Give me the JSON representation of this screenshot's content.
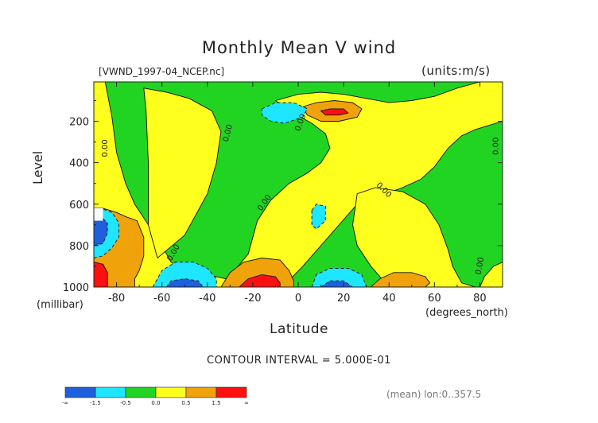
{
  "chart_data": {
    "type": "heatmap",
    "subtype": "filled-contour",
    "title": "Monthly Mean V wind",
    "file_label": "[VWND_1997-04_NCEP.nc]",
    "units_label": "(units:m/s)",
    "xlabel": "Latitude",
    "x_unit_label": "(degrees_north)",
    "ylabel": "Level",
    "y_unit_label": "(millibar)",
    "x_ticks": [
      "-80",
      "-60",
      "-40",
      "-20",
      "0",
      "20",
      "40",
      "60",
      "80"
    ],
    "x_tick_values": [
      -80,
      -60,
      -40,
      -20,
      0,
      20,
      40,
      60,
      80
    ],
    "y_ticks": [
      "200",
      "400",
      "600",
      "800",
      "1000"
    ],
    "y_tick_values": [
      200,
      400,
      600,
      800,
      1000
    ],
    "xlim": [
      -90,
      90
    ],
    "ylim": [
      1000,
      10
    ],
    "y_reversed": true,
    "contour_interval_text": "CONTOUR INTERVAL = 5.000E-01",
    "contour_label": "0.00",
    "mean_text": "(mean) lon:0..357.5",
    "colorbar": {
      "labels": [
        "-∞",
        "-1.5",
        "-0.5",
        "0.0",
        "0.5",
        "1.5",
        "∞"
      ],
      "colors": [
        "#1e5fdc",
        "#1ee6ff",
        "#22d422",
        "#ffff1e",
        "#f0a20a",
        "#ff1010"
      ]
    },
    "regions": [
      {
        "name": "positive-band-west",
        "class": 1,
        "polygon": [
          [
            -85,
            10
          ],
          [
            -82,
            180
          ],
          [
            -80,
            350
          ],
          [
            -76,
            500
          ],
          [
            -72,
            600
          ],
          [
            -66,
            700
          ],
          [
            -60,
            800
          ],
          [
            -56,
            880
          ],
          [
            -50,
            920
          ],
          [
            -40,
            940
          ],
          [
            -32,
            960
          ],
          [
            -26,
            1000
          ],
          [
            -60,
            1000
          ],
          [
            -75,
            1000
          ],
          [
            -88,
            1000
          ],
          [
            -90,
            1000
          ],
          [
            -90,
            10
          ]
        ]
      },
      {
        "name": "positive-band-upper",
        "class": 1,
        "polygon": [
          [
            -68,
            40
          ],
          [
            -58,
            60
          ],
          [
            -48,
            90
          ],
          [
            -38,
            150
          ],
          [
            -34,
            250
          ],
          [
            -36,
            400
          ],
          [
            -40,
            550
          ],
          [
            -50,
            750
          ],
          [
            -62,
            860
          ],
          [
            -66,
            700
          ],
          [
            -66,
            400
          ],
          [
            -67,
            150
          ]
        ]
      },
      {
        "name": "positive-band-middle",
        "class": 1,
        "polygon": [
          [
            -10,
            100
          ],
          [
            -2,
            160
          ],
          [
            6,
            210
          ],
          [
            12,
            260
          ],
          [
            14,
            330
          ],
          [
            10,
            400
          ],
          [
            4,
            450
          ],
          [
            -4,
            500
          ],
          [
            -12,
            580
          ],
          [
            -18,
            680
          ],
          [
            -22,
            840
          ],
          [
            -28,
            920
          ],
          [
            -30,
            980
          ],
          [
            -18,
            990
          ],
          [
            -6,
            990
          ],
          [
            2,
            900
          ],
          [
            10,
            800
          ],
          [
            18,
            700
          ],
          [
            26,
            600
          ],
          [
            36,
            560
          ],
          [
            46,
            520
          ],
          [
            54,
            480
          ],
          [
            60,
            420
          ],
          [
            66,
            330
          ],
          [
            72,
            270
          ],
          [
            78,
            240
          ],
          [
            84,
            220
          ],
          [
            90,
            200
          ],
          [
            90,
            10
          ],
          [
            80,
            10
          ],
          [
            70,
            40
          ],
          [
            60,
            80
          ],
          [
            50,
            100
          ],
          [
            40,
            110
          ],
          [
            30,
            90
          ],
          [
            20,
            70
          ],
          [
            10,
            60
          ],
          [
            0,
            70
          ]
        ]
      },
      {
        "name": "positive-band-east",
        "class": 1,
        "polygon": [
          [
            26,
            550
          ],
          [
            34,
            520
          ],
          [
            46,
            540
          ],
          [
            56,
            600
          ],
          [
            62,
            700
          ],
          [
            66,
            820
          ],
          [
            68,
            900
          ],
          [
            72,
            980
          ],
          [
            78,
            1000
          ],
          [
            40,
            1000
          ],
          [
            32,
            900
          ],
          [
            26,
            800
          ],
          [
            24,
            700
          ]
        ]
      },
      {
        "name": "positive-corner-east",
        "class": 1,
        "polygon": [
          [
            82,
            950
          ],
          [
            86,
            900
          ],
          [
            90,
            880
          ],
          [
            90,
            1000
          ],
          [
            80,
            1000
          ]
        ]
      },
      {
        "name": "moderate-positive-west",
        "class": 2,
        "polygon": [
          [
            -90,
            620
          ],
          [
            -86,
            620
          ],
          [
            -80,
            640
          ],
          [
            -76,
            660
          ],
          [
            -71,
            680
          ],
          [
            -68,
            760
          ],
          [
            -68,
            850
          ],
          [
            -70,
            920
          ],
          [
            -72,
            960
          ],
          [
            -72,
            1000
          ],
          [
            -90,
            1000
          ]
        ]
      },
      {
        "name": "strong-positive-west",
        "class": 3,
        "polygon": [
          [
            -90,
            880
          ],
          [
            -86,
            890
          ],
          [
            -84,
            930
          ],
          [
            -84,
            960
          ],
          [
            -84,
            1000
          ],
          [
            -90,
            1000
          ]
        ]
      },
      {
        "name": "moderate-positive-lower-middle",
        "class": 2,
        "polygon": [
          [
            -34,
            1000
          ],
          [
            -30,
            930
          ],
          [
            -24,
            880
          ],
          [
            -16,
            860
          ],
          [
            -8,
            870
          ],
          [
            -4,
            920
          ],
          [
            -2,
            970
          ],
          [
            -2,
            1000
          ]
        ]
      },
      {
        "name": "strong-positive-lower-middle",
        "class": 3,
        "polygon": [
          [
            -26,
            1000
          ],
          [
            -22,
            960
          ],
          [
            -16,
            940
          ],
          [
            -10,
            950
          ],
          [
            -8,
            980
          ],
          [
            -8,
            1000
          ]
        ]
      },
      {
        "name": "moderate-positive-upper-middle",
        "class": 2,
        "polygon": [
          [
            2,
            130
          ],
          [
            8,
            110
          ],
          [
            16,
            100
          ],
          [
            24,
            110
          ],
          [
            28,
            140
          ],
          [
            26,
            180
          ],
          [
            18,
            200
          ],
          [
            10,
            200
          ],
          [
            4,
            170
          ]
        ]
      },
      {
        "name": "strong-positive-upper-middle",
        "class": 3,
        "polygon": [
          [
            10,
            150
          ],
          [
            14,
            140
          ],
          [
            20,
            140
          ],
          [
            22,
            160
          ],
          [
            18,
            170
          ],
          [
            12,
            170
          ]
        ]
      },
      {
        "name": "moderate-positive-lower-east",
        "class": 2,
        "polygon": [
          [
            32,
            1000
          ],
          [
            36,
            960
          ],
          [
            42,
            930
          ],
          [
            50,
            930
          ],
          [
            56,
            950
          ],
          [
            58,
            980
          ],
          [
            56,
            1000
          ]
        ]
      },
      {
        "name": "negative-upper",
        "class": -1,
        "polygon": [
          [
            -16,
            140
          ],
          [
            -10,
            110
          ],
          [
            -2,
            110
          ],
          [
            4,
            140
          ],
          [
            2,
            180
          ],
          [
            -6,
            210
          ],
          [
            -12,
            200
          ],
          [
            -16,
            170
          ]
        ]
      },
      {
        "name": "negative-mid",
        "class": -1,
        "polygon": [
          [
            6,
            630
          ],
          [
            8,
            600
          ],
          [
            12,
            610
          ],
          [
            12,
            680
          ],
          [
            8,
            720
          ],
          [
            6,
            700
          ]
        ]
      },
      {
        "name": "negative-west",
        "class": -1,
        "polygon": [
          [
            -90,
            640
          ],
          [
            -87,
            620
          ],
          [
            -82,
            640
          ],
          [
            -79,
            690
          ],
          [
            -79,
            760
          ],
          [
            -82,
            810
          ],
          [
            -86,
            850
          ],
          [
            -90,
            860
          ]
        ]
      },
      {
        "name": "strong-negative-west",
        "class": -2,
        "polygon": [
          [
            -90,
            680
          ],
          [
            -87,
            660
          ],
          [
            -84,
            690
          ],
          [
            -84,
            740
          ],
          [
            -86,
            790
          ],
          [
            -90,
            800
          ]
        ]
      },
      {
        "name": "negative-lower-west",
        "class": -1,
        "polygon": [
          [
            -64,
            1000
          ],
          [
            -60,
            920
          ],
          [
            -54,
            880
          ],
          [
            -46,
            880
          ],
          [
            -40,
            910
          ],
          [
            -36,
            960
          ],
          [
            -36,
            1000
          ]
        ]
      },
      {
        "name": "strong-negative-lower-west",
        "class": -2,
        "polygon": [
          [
            -58,
            1000
          ],
          [
            -56,
            970
          ],
          [
            -50,
            960
          ],
          [
            -44,
            970
          ],
          [
            -42,
            1000
          ]
        ]
      },
      {
        "name": "negative-lower-middle",
        "class": -1,
        "polygon": [
          [
            6,
            1000
          ],
          [
            8,
            940
          ],
          [
            14,
            910
          ],
          [
            22,
            910
          ],
          [
            28,
            940
          ],
          [
            30,
            1000
          ]
        ]
      },
      {
        "name": "strong-negative-lower-middle",
        "class": -2,
        "polygon": [
          [
            10,
            1000
          ],
          [
            14,
            970
          ],
          [
            20,
            970
          ],
          [
            24,
            1000
          ]
        ]
      }
    ],
    "zero_label_positions": [
      {
        "x": -84,
        "y": 330,
        "angle": -90
      },
      {
        "x": -30,
        "y": 260,
        "angle": -75
      },
      {
        "x": 2,
        "y": 210,
        "angle": -70
      },
      {
        "x": -14,
        "y": 600,
        "angle": -55
      },
      {
        "x": -54,
        "y": 840,
        "angle": -60
      },
      {
        "x": 37,
        "y": 540,
        "angle": 45
      },
      {
        "x": 81,
        "y": 900,
        "angle": -80
      },
      {
        "x": 88,
        "y": 320,
        "angle": -90
      }
    ]
  }
}
